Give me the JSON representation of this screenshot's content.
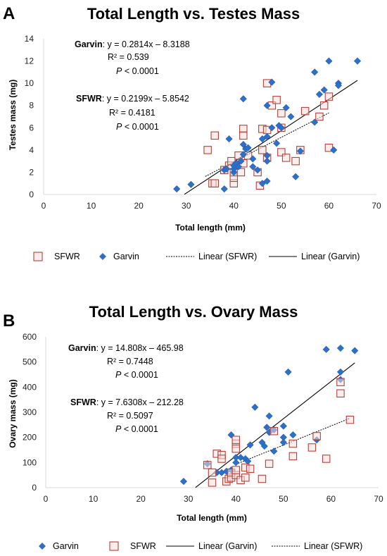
{
  "panels": [
    {
      "letter": "A",
      "title": "Total Length vs. Testes Mass",
      "eq": [
        {
          "name": "Garvin",
          "rest": ": y = 0.2814x – 8.3188",
          "r2": "R² = 0.539",
          "p_italic": "P",
          "p_rest": " < 0.0001"
        },
        {
          "name": "SFWR",
          "rest": ": y = 0.2199x – 5.8542",
          "r2": "R² = 0.4181",
          "p_italic": "P",
          "p_rest": " < 0.0001"
        }
      ],
      "legend": [
        "SFWR",
        "Garvin",
        "Linear (SFWR)",
        "Linear (Garvin)"
      ]
    },
    {
      "letter": "B",
      "title": "Total Length vs. Ovary Mass",
      "eq": [
        {
          "name": "Garvin",
          "rest": ": y = 14.808x – 465.98",
          "r2": "R² = 0.7448",
          "p_italic": "P",
          "p_rest": " < 0.0001"
        },
        {
          "name": "SFWR",
          "rest": ": y = 7.6308x – 212.28",
          "r2": "R² = 0.5097",
          "p_italic": "P",
          "p_rest": " < 0.0001"
        }
      ],
      "legend": [
        "Garvin",
        "SFWR",
        "Linear (Garvin)",
        "Linear (SFWR)"
      ]
    }
  ],
  "colors": {
    "garvin": "#2E6FC8",
    "sfwr": "#B5413A",
    "sfwr_fill": "#F6DEDB",
    "axis": "#d9d9d9",
    "text": "#000000"
  },
  "chart_data": [
    {
      "type": "scatter",
      "title": "Total Length vs. Testes Mass",
      "xlabel": "Total length (mm)",
      "ylabel": "Testes mass (mg)",
      "xlim": [
        0,
        70
      ],
      "ylim": [
        0,
        14
      ],
      "xticks": [
        0,
        10,
        20,
        30,
        40,
        50,
        60,
        70
      ],
      "yticks": [
        0,
        2,
        4,
        6,
        8,
        10,
        12,
        14
      ],
      "grid": false,
      "series": [
        {
          "name": "SFWR",
          "marker": "square",
          "points": [
            [
              34.5,
              4.0
            ],
            [
              35.5,
              1.0
            ],
            [
              36,
              5.3
            ],
            [
              36,
              1.0
            ],
            [
              38,
              2.2
            ],
            [
              39,
              2.6
            ],
            [
              39.5,
              3.0
            ],
            [
              40,
              1.0
            ],
            [
              40,
              1.5
            ],
            [
              40,
              2.0
            ],
            [
              41,
              3.5
            ],
            [
              41.5,
              2.0
            ],
            [
              42,
              5.9
            ],
            [
              42,
              5.3
            ],
            [
              42,
              2.8
            ],
            [
              43,
              3.5
            ],
            [
              45,
              2.0
            ],
            [
              45.5,
              0.8
            ],
            [
              46,
              4.0
            ],
            [
              46,
              5.9
            ],
            [
              47,
              10.0
            ],
            [
              47,
              3.3
            ],
            [
              47,
              5.8
            ],
            [
              48,
              8.0
            ],
            [
              49,
              8.5
            ],
            [
              50,
              7.3
            ],
            [
              50,
              6.0
            ],
            [
              50,
              3.8
            ],
            [
              51,
              3.3
            ],
            [
              53,
              3.0
            ],
            [
              54,
              4.0
            ],
            [
              55,
              7.5
            ],
            [
              58,
              7.0
            ],
            [
              59,
              8.0
            ],
            [
              60,
              8.8
            ],
            [
              60,
              4.2
            ]
          ]
        },
        {
          "name": "Garvin",
          "marker": "diamond",
          "points": [
            [
              28,
              0.5
            ],
            [
              31,
              0.9
            ],
            [
              38,
              0.5
            ],
            [
              38,
              2.2
            ],
            [
              38.5,
              2.3
            ],
            [
              39,
              5.0
            ],
            [
              40,
              2.0
            ],
            [
              40,
              2.3
            ],
            [
              40,
              2.6
            ],
            [
              40.5,
              2.8
            ],
            [
              41,
              2.5
            ],
            [
              41.5,
              3.0
            ],
            [
              42,
              4.5
            ],
            [
              42,
              8.6
            ],
            [
              42,
              3.6
            ],
            [
              42.5,
              4.1
            ],
            [
              43,
              4.2
            ],
            [
              44,
              2.5
            ],
            [
              44,
              3.2
            ],
            [
              45,
              2.2
            ],
            [
              46,
              1.0
            ],
            [
              46,
              5.0
            ],
            [
              47,
              8.0
            ],
            [
              47,
              5.2
            ],
            [
              47,
              3.5
            ],
            [
              47,
              3.0
            ],
            [
              47,
              1.2
            ],
            [
              48,
              10.1
            ],
            [
              48,
              6.0
            ],
            [
              49,
              4.6
            ],
            [
              49.5,
              6.2
            ],
            [
              50,
              6.0
            ],
            [
              51,
              7.8
            ],
            [
              52,
              7.0
            ],
            [
              53,
              1.6
            ],
            [
              54,
              3.9
            ],
            [
              57,
              11.0
            ],
            [
              57,
              6.5
            ],
            [
              58,
              9.0
            ],
            [
              59,
              9.4
            ],
            [
              60,
              12.0
            ],
            [
              61,
              4.0
            ],
            [
              62,
              10.0
            ],
            [
              62,
              9.8
            ],
            [
              66,
              12.0
            ]
          ]
        }
      ],
      "trendlines": [
        {
          "name": "Linear (SFWR)",
          "slope": 0.2199,
          "intercept": -5.8542,
          "x_range": [
            34,
            60
          ],
          "style": "dotted"
        },
        {
          "name": "Linear (Garvin)",
          "slope": 0.2814,
          "intercept": -8.3188,
          "x_range": [
            29.6,
            66
          ],
          "style": "solid"
        }
      ]
    },
    {
      "type": "scatter",
      "title": "Total Length vs. Ovary Mass",
      "xlabel": "Total length (mm)",
      "ylabel": "Ovary mass (mg)",
      "xlim": [
        0,
        70
      ],
      "ylim": [
        0,
        600
      ],
      "xticks": [
        0,
        10,
        20,
        30,
        40,
        50,
        60,
        70
      ],
      "yticks": [
        0,
        100,
        200,
        300,
        400,
        500,
        600
      ],
      "grid": false,
      "series": [
        {
          "name": "Garvin",
          "marker": "diamond",
          "points": [
            [
              29,
              25
            ],
            [
              34,
              95
            ],
            [
              36,
              60
            ],
            [
              37,
              60
            ],
            [
              38,
              65
            ],
            [
              39,
              70
            ],
            [
              39,
              210
            ],
            [
              40,
              100
            ],
            [
              40,
              120
            ],
            [
              41,
              120
            ],
            [
              42,
              115
            ],
            [
              42.5,
              105
            ],
            [
              43,
              170
            ],
            [
              44,
              320
            ],
            [
              45.5,
              180
            ],
            [
              46,
              165
            ],
            [
              46.5,
              240
            ],
            [
              47,
              220
            ],
            [
              47,
              285
            ],
            [
              48,
              145
            ],
            [
              48,
              230
            ],
            [
              50,
              245
            ],
            [
              50,
              200
            ],
            [
              50,
              180
            ],
            [
              51,
              460
            ],
            [
              52,
              210
            ],
            [
              57,
              190
            ],
            [
              59,
              550
            ],
            [
              62,
              555
            ],
            [
              62,
              460
            ],
            [
              62,
              430
            ],
            [
              65,
              545
            ]
          ]
        },
        {
          "name": "SFWR",
          "marker": "square",
          "points": [
            [
              34,
              90
            ],
            [
              35,
              20
            ],
            [
              35,
              60
            ],
            [
              36,
              135
            ],
            [
              37,
              130
            ],
            [
              37,
              115
            ],
            [
              38,
              25
            ],
            [
              38.5,
              35
            ],
            [
              39,
              40
            ],
            [
              39,
              60
            ],
            [
              40,
              50
            ],
            [
              40,
              70
            ],
            [
              40,
              175
            ],
            [
              40,
              190
            ],
            [
              40,
              155
            ],
            [
              41,
              30
            ],
            [
              42,
              80
            ],
            [
              42,
              40
            ],
            [
              43,
              75
            ],
            [
              45.5,
              35
            ],
            [
              47,
              95
            ],
            [
              48,
              225
            ],
            [
              52,
              175
            ],
            [
              52,
              125
            ],
            [
              56,
              160
            ],
            [
              57,
              205
            ],
            [
              59,
              115
            ],
            [
              62,
              420
            ],
            [
              62,
              375
            ],
            [
              64,
              270
            ]
          ]
        }
      ],
      "trendlines": [
        {
          "name": "Linear (Garvin)",
          "slope": 14.808,
          "intercept": -465.98,
          "x_range": [
            31.5,
            65
          ],
          "style": "solid"
        },
        {
          "name": "Linear (SFWR)",
          "slope": 7.6308,
          "intercept": -212.28,
          "x_range": [
            40,
            64
          ],
          "style": "dotted"
        }
      ]
    }
  ]
}
